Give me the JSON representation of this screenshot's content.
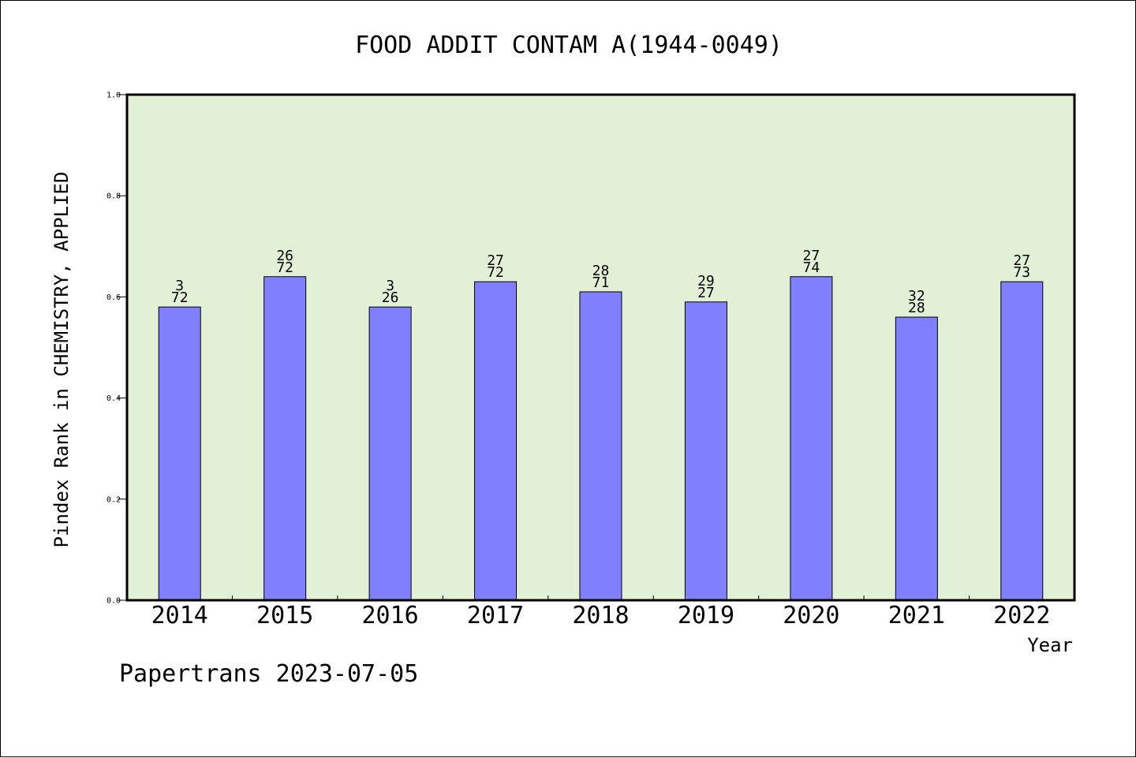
{
  "chart_data": {
    "type": "bar",
    "title": "FOOD ADDIT CONTAM A(1944-0049)",
    "xlabel": "Year",
    "ylabel": "Pindex Rank in CHEMISTRY, APPLIED",
    "ylim": [
      0.0,
      1.0
    ],
    "yticks": [
      "0.0",
      "0.2",
      "0.4",
      "0.6",
      "0.8",
      "1.0"
    ],
    "categories": [
      "2014",
      "2015",
      "2016",
      "2017",
      "2018",
      "2019",
      "2020",
      "2021",
      "2022"
    ],
    "values": [
      0.58,
      0.64,
      0.58,
      0.63,
      0.61,
      0.59,
      0.64,
      0.56,
      0.63
    ],
    "labels": [
      [
        "3",
        "72"
      ],
      [
        "26",
        "72"
      ],
      [
        "3",
        "26"
      ],
      [
        "27",
        "72"
      ],
      [
        "28",
        "71"
      ],
      [
        "29",
        "27"
      ],
      [
        "27",
        "74"
      ],
      [
        "32",
        "28"
      ],
      [
        "27",
        "73"
      ]
    ],
    "grid": false,
    "colors": {
      "plot_background": "#e2f0d6",
      "bar_fill": "#8080ff",
      "bar_stroke": "#000000"
    }
  },
  "footer": "Papertrans 2023-07-05"
}
